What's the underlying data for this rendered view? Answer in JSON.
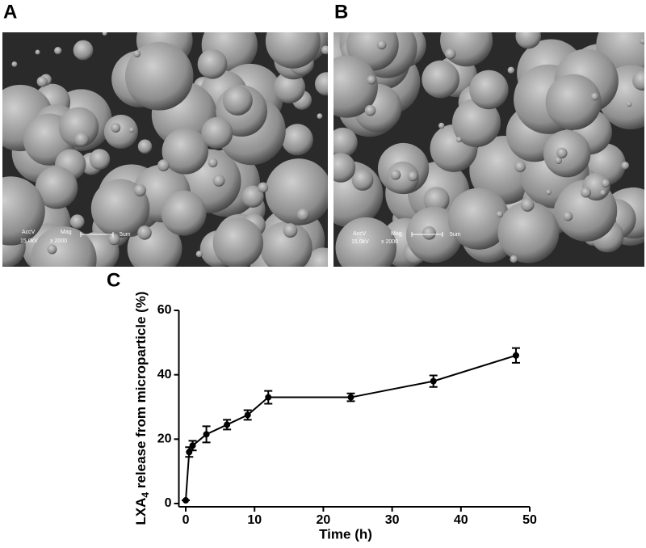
{
  "panels": [
    {
      "label": "A",
      "overlay": {
        "accv": "AccV",
        "mag": "Mag",
        "kv": "15.0kV",
        "magnification": "x 2000",
        "scale": "5um"
      }
    },
    {
      "label": "B",
      "overlay": {
        "accv": "AccV",
        "mag": "Mag",
        "kv": "15.0kV",
        "magnification": "x 2000",
        "scale": "5um"
      }
    }
  ],
  "chart_label": "C",
  "chart_data": {
    "type": "line",
    "xlabel": "Time (h)",
    "ylabel": [
      "LXA",
      "4",
      " release from microparticle (%)"
    ],
    "x": [
      0,
      0.5,
      1,
      3,
      6,
      9,
      12,
      24,
      36,
      48
    ],
    "values": [
      1,
      16,
      18,
      21.5,
      24.5,
      27.5,
      33,
      33,
      38,
      46
    ],
    "errors": [
      0,
      1.5,
      1.5,
      2.5,
      1.5,
      1.5,
      2,
      1.2,
      1.8,
      2.3
    ],
    "color": "#000000",
    "xlim": [
      -1,
      50
    ],
    "xticks": [
      0,
      10,
      20,
      30,
      40,
      50
    ],
    "ylim": [
      0,
      60
    ],
    "yticks": [
      0,
      20,
      40,
      60
    ],
    "grid": false
  }
}
